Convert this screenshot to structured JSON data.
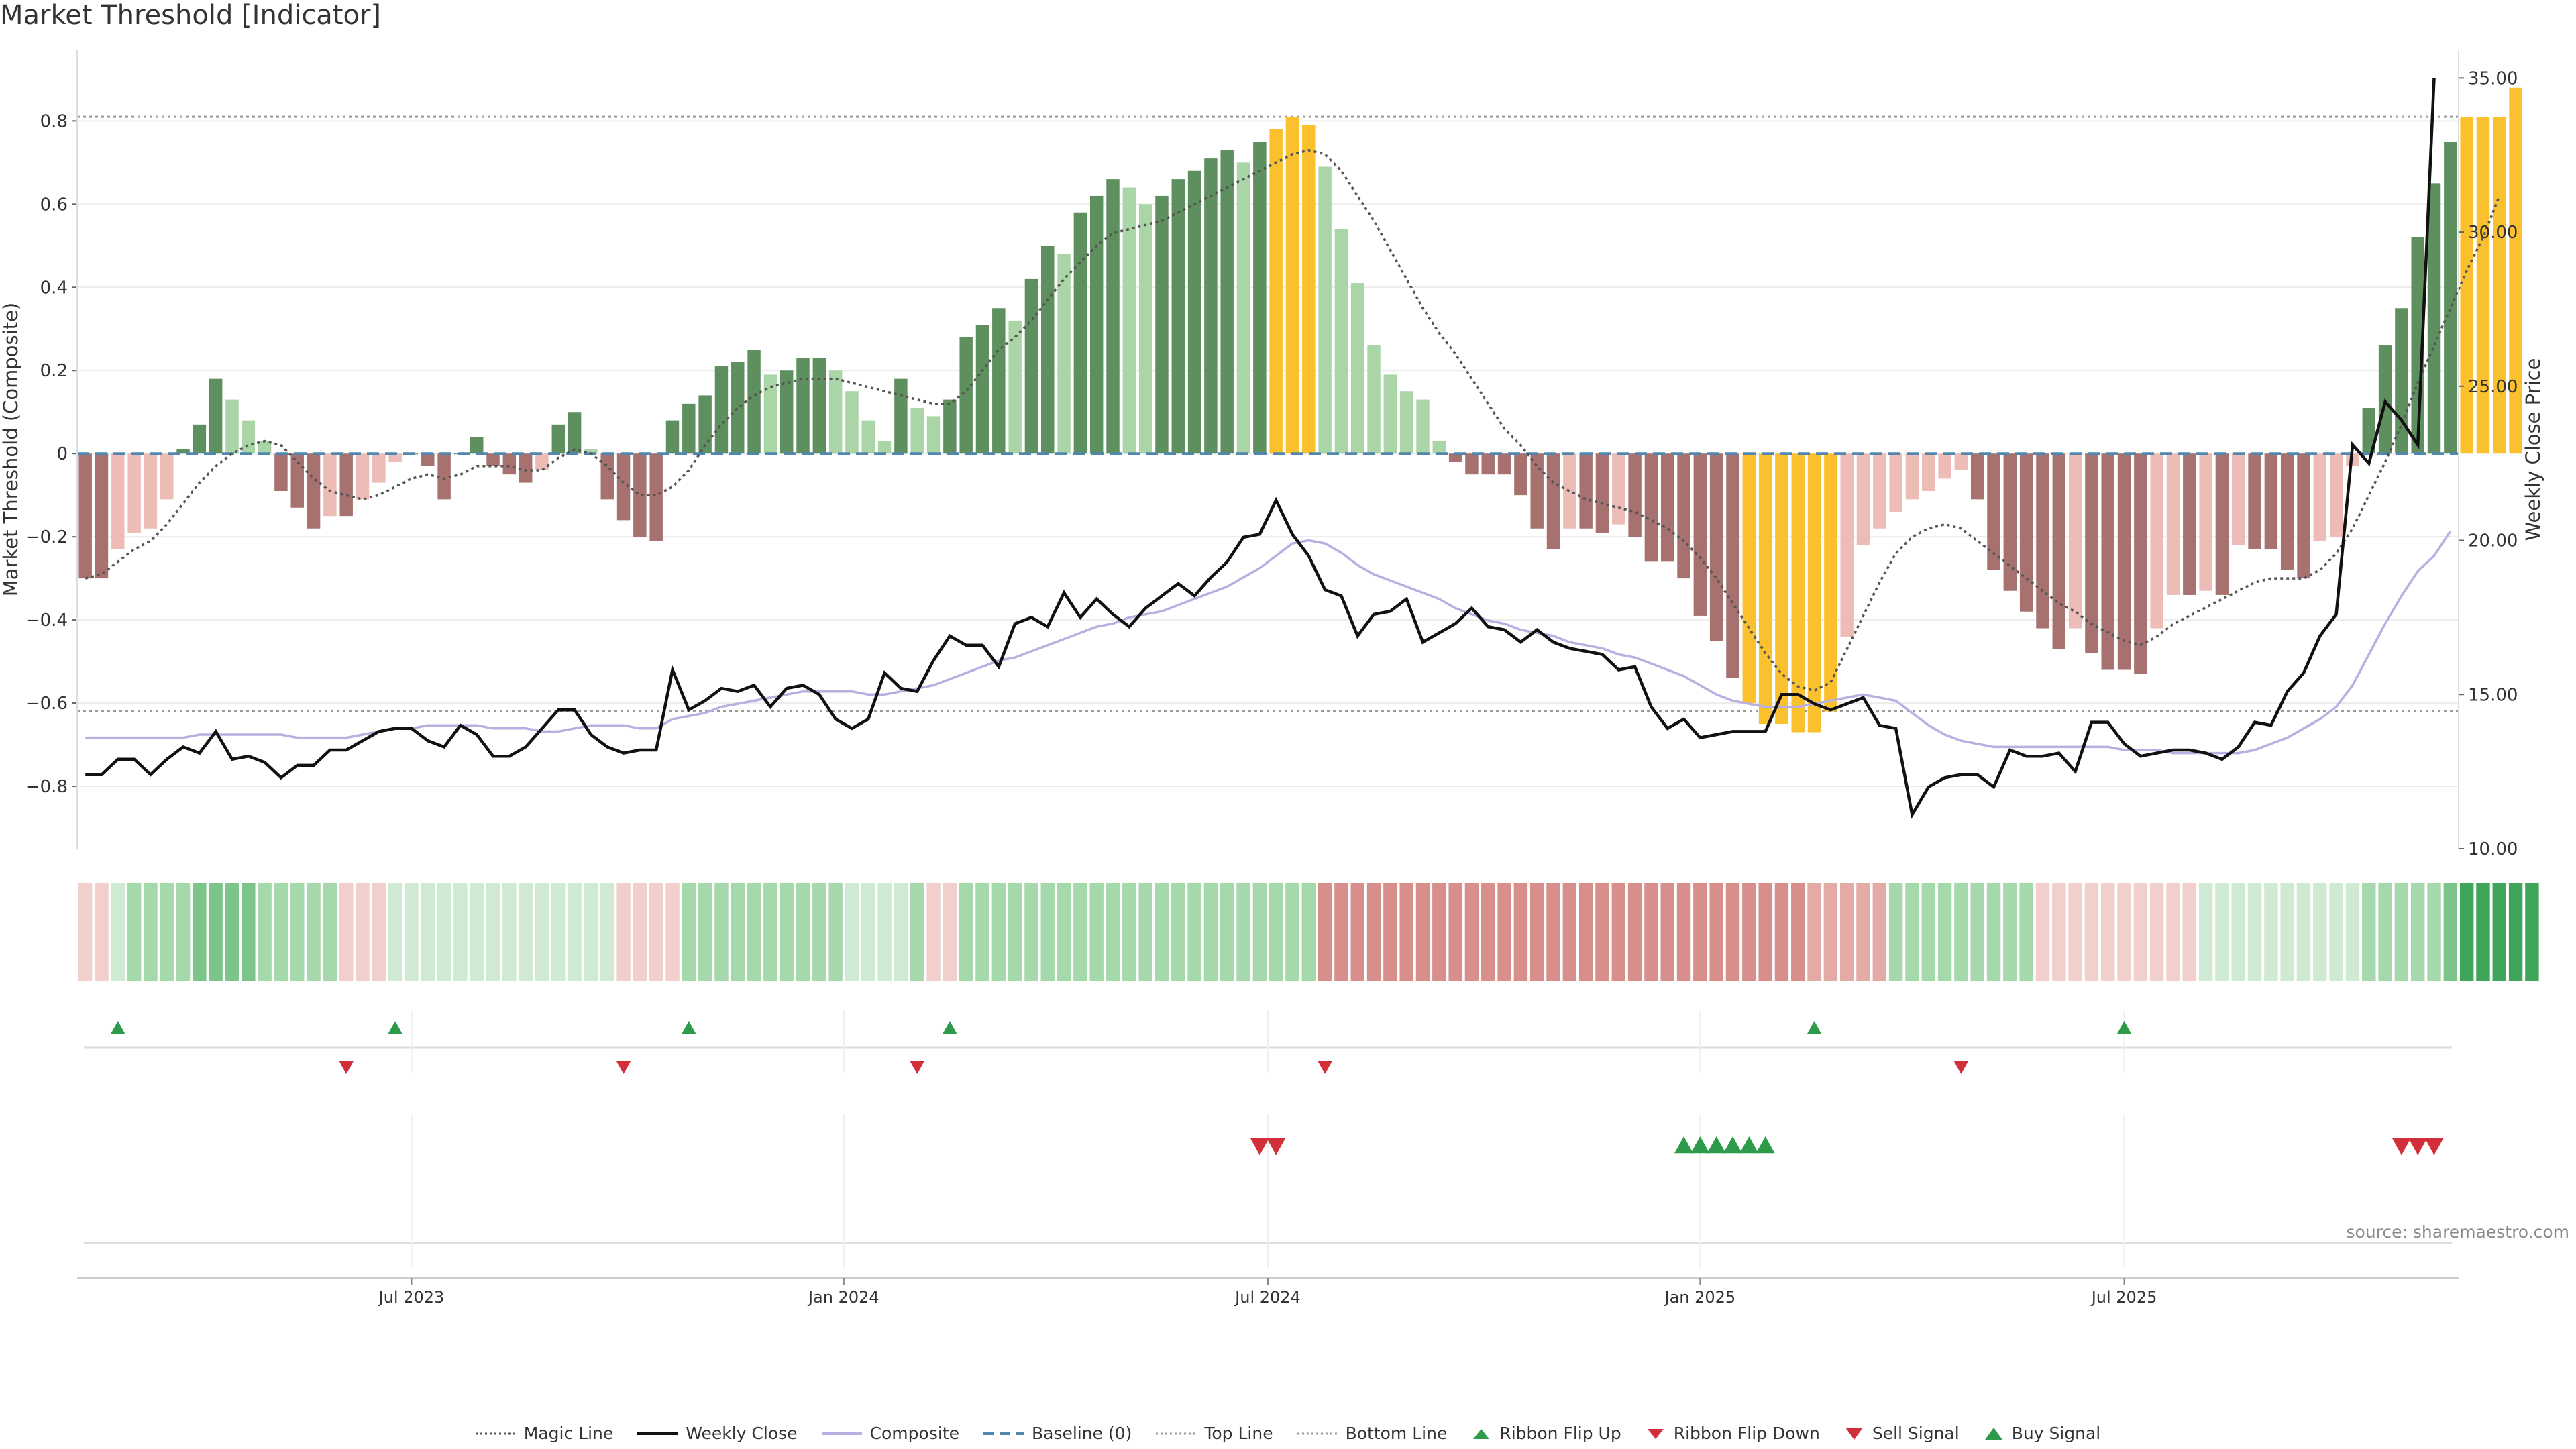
{
  "title": "Market Threshold [Indicator]",
  "source": "source: sharemaestro.com",
  "colors": {
    "bull_dark": "#5e8f5e",
    "bull_light": "#aad5a7",
    "bear_dark": "#a6716e",
    "bear_light": "#edbcb6",
    "extreme": "#fbc02d",
    "magic": "#555555",
    "close": "#111111",
    "composite": "#b9b0e2",
    "baseline": "#4f87b0",
    "guide": "#999999",
    "flip_up": "#2e9b4a",
    "flip_down": "#d32f3a"
  },
  "legend": [
    {
      "label": "Magic Line",
      "icon": "dotted-line-icon"
    },
    {
      "label": "Weekly Close",
      "icon": "solid-line-icon"
    },
    {
      "label": "Composite",
      "icon": "lavender-line-icon"
    },
    {
      "label": "Baseline (0)",
      "icon": "dashed-line-icon"
    },
    {
      "label": "Top Line",
      "icon": "dotted-grey-line-icon"
    },
    {
      "label": "Bottom Line",
      "icon": "dotted-grey-line-icon"
    },
    {
      "label": "Ribbon Flip Up",
      "icon": "triangle-up-icon"
    },
    {
      "label": "Ribbon Flip Down",
      "icon": "triangle-down-icon"
    },
    {
      "label": "Sell Signal",
      "icon": "triangle-down-icon"
    },
    {
      "label": "Buy Signal",
      "icon": "triangle-up-icon"
    }
  ],
  "chart_data": {
    "type": "bar",
    "title": "Market Threshold [Indicator]",
    "ylabel": "Market Threshold (Composite)",
    "y2label": "Weekly Close Price",
    "ylim": [
      -0.95,
      0.97
    ],
    "y2lim": [
      10,
      35.9
    ],
    "yticks": [
      -0.8,
      -0.6,
      -0.4,
      -0.2,
      0,
      0.2,
      0.4,
      0.6,
      0.8
    ],
    "ytick_labels": [
      "−0.8",
      "−0.6",
      "−0.4",
      "−0.2",
      "0",
      "0.2",
      "0.4",
      "0.6",
      "0.8"
    ],
    "y2ticks": [
      10,
      15,
      20,
      25,
      30,
      35
    ],
    "y2tick_labels": [
      "10.00",
      "15.00",
      "20.00",
      "25.00",
      "30.00",
      "35.00"
    ],
    "top_line": 0.81,
    "bottom_line": -0.62,
    "baseline": 0,
    "weeks": 146,
    "x_ticks": [
      {
        "week": 20,
        "label": "Jul 2023"
      },
      {
        "week": 46.5,
        "label": "Jan 2024"
      },
      {
        "week": 72.5,
        "label": "Jul 2024"
      },
      {
        "week": 99,
        "label": "Jan 2025"
      },
      {
        "week": 125,
        "label": "Jul 2025"
      }
    ],
    "series": [
      {
        "name": "Composite (bars)",
        "values": [
          -0.3,
          -0.3,
          -0.23,
          -0.19,
          -0.18,
          -0.11,
          0.01,
          0.07,
          0.18,
          0.13,
          0.08,
          0.03,
          -0.09,
          -0.13,
          -0.18,
          -0.15,
          -0.15,
          -0.11,
          -0.07,
          -0.02,
          0.0,
          -0.03,
          -0.11,
          0.0,
          0.04,
          -0.03,
          -0.05,
          -0.07,
          -0.04,
          0.07,
          0.1,
          0.01,
          -0.11,
          -0.16,
          -0.2,
          -0.21,
          0.08,
          0.12,
          0.14,
          0.21,
          0.22,
          0.25,
          0.19,
          0.2,
          0.23,
          0.23,
          0.2,
          0.15,
          0.08,
          0.03,
          0.18,
          0.11,
          0.09,
          0.13,
          0.28,
          0.31,
          0.35,
          0.32,
          0.42,
          0.5,
          0.48,
          0.58,
          0.62,
          0.66,
          0.64,
          0.6,
          0.62,
          0.66,
          0.68,
          0.71,
          0.73,
          0.7,
          0.75,
          0.78,
          0.81,
          0.79,
          0.69,
          0.54,
          0.41,
          0.26,
          0.19,
          0.15,
          0.13,
          0.03,
          -0.02,
          -0.05,
          -0.05,
          -0.05,
          -0.1,
          -0.18,
          -0.23,
          -0.18,
          -0.18,
          -0.19,
          -0.17,
          -0.2,
          -0.26,
          -0.26,
          -0.3,
          -0.39,
          -0.45,
          -0.54,
          -0.6,
          -0.65,
          -0.65,
          -0.67,
          -0.67,
          -0.62,
          -0.44,
          -0.22,
          -0.18,
          -0.14,
          -0.11,
          -0.09,
          -0.06,
          -0.04,
          -0.11,
          -0.28,
          -0.33,
          -0.38,
          -0.42,
          -0.47,
          -0.42,
          -0.48,
          -0.52,
          -0.52,
          -0.53,
          -0.42,
          -0.34,
          -0.34,
          -0.33,
          -0.34,
          -0.22,
          -0.23,
          -0.23,
          -0.28,
          -0.3,
          -0.21,
          -0.2,
          -0.03,
          0.11,
          0.26,
          0.35,
          0.52,
          0.65,
          0.75,
          0.81,
          0.81,
          0.81,
          0.88
        ]
      },
      {
        "name": "Magic Line",
        "values": [
          -0.3,
          -0.29,
          -0.26,
          -0.23,
          -0.21,
          -0.17,
          -0.12,
          -0.07,
          -0.03,
          0.0,
          0.02,
          0.03,
          0.02,
          -0.02,
          -0.06,
          -0.09,
          -0.1,
          -0.11,
          -0.1,
          -0.08,
          -0.06,
          -0.05,
          -0.06,
          -0.05,
          -0.03,
          -0.03,
          -0.03,
          -0.04,
          -0.04,
          -0.01,
          0.01,
          0.0,
          -0.03,
          -0.07,
          -0.1,
          -0.1,
          -0.08,
          -0.04,
          0.02,
          0.07,
          0.11,
          0.14,
          0.16,
          0.17,
          0.18,
          0.18,
          0.18,
          0.17,
          0.16,
          0.15,
          0.14,
          0.13,
          0.12,
          0.12,
          0.15,
          0.2,
          0.25,
          0.28,
          0.32,
          0.37,
          0.42,
          0.46,
          0.5,
          0.53,
          0.54,
          0.55,
          0.56,
          0.58,
          0.6,
          0.62,
          0.64,
          0.66,
          0.68,
          0.7,
          0.72,
          0.73,
          0.72,
          0.68,
          0.62,
          0.56,
          0.49,
          0.42,
          0.35,
          0.29,
          0.24,
          0.18,
          0.12,
          0.06,
          0.02,
          -0.03,
          -0.07,
          -0.09,
          -0.11,
          -0.12,
          -0.13,
          -0.14,
          -0.16,
          -0.18,
          -0.21,
          -0.25,
          -0.3,
          -0.36,
          -0.42,
          -0.48,
          -0.53,
          -0.56,
          -0.57,
          -0.55,
          -0.47,
          -0.39,
          -0.31,
          -0.24,
          -0.2,
          -0.18,
          -0.17,
          -0.18,
          -0.21,
          -0.24,
          -0.27,
          -0.3,
          -0.33,
          -0.36,
          -0.38,
          -0.41,
          -0.43,
          -0.45,
          -0.46,
          -0.44,
          -0.41,
          -0.39,
          -0.37,
          -0.35,
          -0.33,
          -0.31,
          -0.3,
          -0.3,
          -0.3,
          -0.28,
          -0.24,
          -0.18,
          -0.1,
          -0.02,
          0.07,
          0.17,
          0.26,
          0.35,
          0.44,
          0.52,
          0.62
        ]
      },
      {
        "name": "Weekly Close",
        "values": [
          12.4,
          12.4,
          12.9,
          12.9,
          12.4,
          12.9,
          13.3,
          13.1,
          13.8,
          12.9,
          13.0,
          12.8,
          12.3,
          12.7,
          12.7,
          13.2,
          13.2,
          13.5,
          13.8,
          13.9,
          13.9,
          13.5,
          13.3,
          14.0,
          13.7,
          13.0,
          13.0,
          13.3,
          13.9,
          14.5,
          14.5,
          13.7,
          13.3,
          13.1,
          13.2,
          13.2,
          15.8,
          14.5,
          14.8,
          15.2,
          15.1,
          15.3,
          14.6,
          15.2,
          15.3,
          15.0,
          14.2,
          13.9,
          14.2,
          15.7,
          15.2,
          15.1,
          16.1,
          16.9,
          16.6,
          16.6,
          15.9,
          17.3,
          17.5,
          17.2,
          18.3,
          17.5,
          18.1,
          17.6,
          17.2,
          17.8,
          18.2,
          18.6,
          18.2,
          18.8,
          19.3,
          20.1,
          20.2,
          21.3,
          20.2,
          19.5,
          18.4,
          18.2,
          16.9,
          17.6,
          17.7,
          18.1,
          16.7,
          17.0,
          17.3,
          17.8,
          17.2,
          17.1,
          16.7,
          17.1,
          16.7,
          16.5,
          16.4,
          16.3,
          15.8,
          15.9,
          14.6,
          13.9,
          14.2,
          13.6,
          13.7,
          13.8,
          13.8,
          13.8,
          15.0,
          15.0,
          14.7,
          14.5,
          14.7,
          14.9,
          14.0,
          13.9,
          11.1,
          12.0,
          12.3,
          12.4,
          12.4,
          12.0,
          13.2,
          13.0,
          13.0,
          13.1,
          12.5,
          14.1,
          14.1,
          13.4,
          13.0,
          13.1,
          13.2,
          13.2,
          13.1,
          12.9,
          13.3,
          14.1,
          14.0,
          15.1,
          15.7,
          16.9,
          17.6,
          23.1,
          22.5,
          24.5,
          23.9,
          23.1,
          35.0
        ]
      },
      {
        "name": "Composite Trend",
        "values": [
          13.6,
          13.6,
          13.6,
          13.6,
          13.6,
          13.6,
          13.6,
          13.7,
          13.7,
          13.7,
          13.7,
          13.7,
          13.7,
          13.6,
          13.6,
          13.6,
          13.6,
          13.7,
          13.8,
          13.9,
          13.9,
          14.0,
          14.0,
          14.0,
          14.0,
          13.9,
          13.9,
          13.9,
          13.8,
          13.8,
          13.9,
          14.0,
          14.0,
          14.0,
          13.9,
          13.9,
          14.2,
          14.3,
          14.4,
          14.6,
          14.7,
          14.8,
          14.9,
          15.0,
          15.1,
          15.1,
          15.1,
          15.1,
          15.0,
          15.0,
          15.1,
          15.2,
          15.3,
          15.5,
          15.7,
          15.9,
          16.1,
          16.2,
          16.4,
          16.6,
          16.8,
          17.0,
          17.2,
          17.3,
          17.5,
          17.6,
          17.7,
          17.9,
          18.1,
          18.3,
          18.5,
          18.8,
          19.1,
          19.5,
          19.9,
          20.0,
          19.9,
          19.6,
          19.2,
          18.9,
          18.7,
          18.5,
          18.3,
          18.1,
          17.8,
          17.6,
          17.4,
          17.3,
          17.1,
          17.0,
          16.9,
          16.7,
          16.6,
          16.5,
          16.3,
          16.2,
          16.0,
          15.8,
          15.6,
          15.3,
          15.0,
          14.8,
          14.7,
          14.6,
          14.6,
          14.6,
          14.7,
          14.8,
          14.9,
          15.0,
          14.9,
          14.8,
          14.4,
          14.0,
          13.7,
          13.5,
          13.4,
          13.3,
          13.3,
          13.3,
          13.3,
          13.3,
          13.3,
          13.3,
          13.3,
          13.2,
          13.2,
          13.2,
          13.1,
          13.1,
          13.1,
          13.1,
          13.1,
          13.2,
          13.4,
          13.6,
          13.9,
          14.2,
          14.6,
          15.3,
          16.3,
          17.3,
          18.2,
          19.0,
          19.5,
          20.3
        ]
      }
    ],
    "ribbon": [
      -1,
      -1,
      1,
      2,
      2,
      2,
      2,
      3,
      3,
      3,
      3,
      2,
      2,
      2,
      2,
      2,
      -1,
      -1,
      -1,
      1,
      1,
      1,
      1,
      1,
      1,
      1,
      1,
      1,
      1,
      1,
      1,
      1,
      1,
      -1,
      -1,
      -1,
      -1,
      2,
      2,
      2,
      2,
      2,
      2,
      2,
      2,
      2,
      2,
      1,
      1,
      1,
      1,
      2,
      -1,
      -1,
      2,
      2,
      2,
      2,
      2,
      2,
      2,
      2,
      2,
      2,
      2,
      2,
      2,
      2,
      2,
      2,
      2,
      2,
      2,
      2,
      2,
      2,
      -3,
      -3,
      -3,
      -3,
      -3,
      -3,
      -3,
      -3,
      -3,
      -3,
      -3,
      -3,
      -3,
      -3,
      -3,
      -3,
      -3,
      -3,
      -3,
      -3,
      -3,
      -3,
      -3,
      -3,
      -3,
      -3,
      -3,
      -3,
      -3,
      -3,
      -2,
      -2,
      -2,
      -2,
      -2,
      2,
      2,
      2,
      2,
      2,
      2,
      2,
      2,
      2,
      -1,
      -1,
      -1,
      -1,
      -1,
      -1,
      -1,
      -1,
      -1,
      -1,
      1,
      1,
      1,
      1,
      1,
      1,
      1,
      1,
      1,
      1,
      2,
      2,
      2,
      2,
      2,
      3,
      4,
      4,
      4,
      4,
      4
    ],
    "ribbon_flips_up": [
      2,
      19,
      37,
      53,
      106,
      125
    ],
    "ribbon_flips_down": [
      16,
      33,
      51,
      76,
      115
    ],
    "sell_signals": [
      72,
      73,
      142,
      143,
      144
    ],
    "buy_signals": [
      98,
      99,
      100,
      101,
      102,
      103
    ]
  }
}
